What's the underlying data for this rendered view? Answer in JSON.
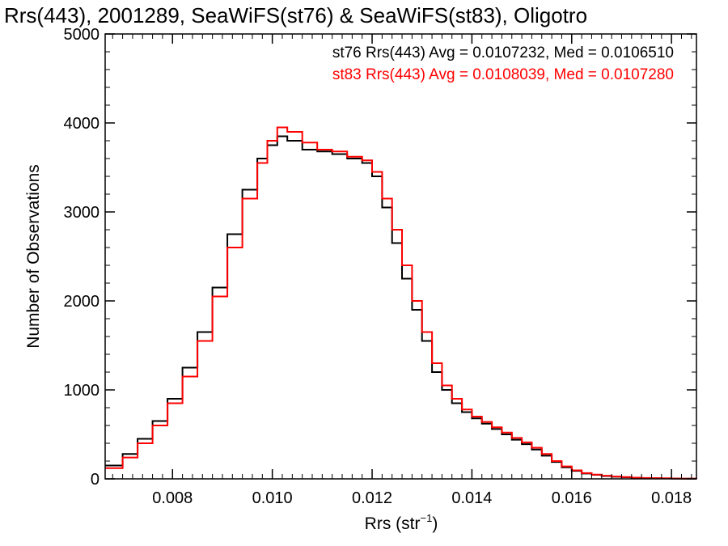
{
  "chart_data": {
    "type": "line",
    "title": "Rrs(443), 2001289, SeaWiFS(st76) & SeaWiFS(st83), Oligotro",
    "xlabel": "Rrs (str",
    "xlabel_exp": "−1",
    "xlabel_end": ")",
    "ylabel": "Number of Observations",
    "xlim": [
      0.00665,
      0.0185
    ],
    "ylim": [
      0,
      5000
    ],
    "x_ticks": [
      {
        "value": 0.008,
        "label": "0.008"
      },
      {
        "value": 0.01,
        "label": "0.010"
      },
      {
        "value": 0.012,
        "label": "0.012"
      },
      {
        "value": 0.014,
        "label": "0.014"
      },
      {
        "value": 0.016,
        "label": "0.016"
      },
      {
        "value": 0.018,
        "label": "0.018"
      }
    ],
    "y_ticks": [
      {
        "value": 0,
        "label": "0"
      },
      {
        "value": 1000,
        "label": "1000"
      },
      {
        "value": 2000,
        "label": "2000"
      },
      {
        "value": 3000,
        "label": "3000"
      },
      {
        "value": 4000,
        "label": "4000"
      },
      {
        "value": 5000,
        "label": "5000"
      }
    ],
    "grid": false,
    "legend_position": "top-right",
    "series": [
      {
        "label": "st76 Rrs(443) Avg = 0.0107232, Med = 0.0106510",
        "color": "#000000",
        "x": [
          0.00665,
          0.007,
          0.0073,
          0.0076,
          0.0079,
          0.0082,
          0.0085,
          0.0088,
          0.0091,
          0.0094,
          0.0097,
          0.0099,
          0.0101,
          0.0103,
          0.0106,
          0.0109,
          0.0112,
          0.0115,
          0.0118,
          0.012,
          0.0122,
          0.0124,
          0.0126,
          0.0128,
          0.013,
          0.0132,
          0.0134,
          0.0136,
          0.0138,
          0.014,
          0.0142,
          0.0144,
          0.0146,
          0.0148,
          0.015,
          0.0152,
          0.0154,
          0.0156,
          0.0158,
          0.016,
          0.0162,
          0.0164,
          0.0166,
          0.0168,
          0.017,
          0.0172,
          0.0174,
          0.0176,
          0.0178,
          0.018,
          0.0182,
          0.0185
        ],
        "y": [
          150,
          280,
          450,
          650,
          900,
          1250,
          1650,
          2150,
          2750,
          3250,
          3600,
          3750,
          3850,
          3800,
          3700,
          3680,
          3650,
          3600,
          3550,
          3400,
          3050,
          2650,
          2250,
          1900,
          1550,
          1200,
          1000,
          850,
          750,
          680,
          620,
          560,
          500,
          440,
          390,
          330,
          260,
          190,
          130,
          90,
          60,
          45,
          32,
          24,
          18,
          12,
          9,
          7,
          5,
          4,
          3,
          2
        ]
      },
      {
        "label": "st83 Rrs(443) Avg = 0.0108039, Med = 0.0107280",
        "color": "#ff0000",
        "x": [
          0.00665,
          0.007,
          0.0073,
          0.0076,
          0.0079,
          0.0082,
          0.0085,
          0.0088,
          0.0091,
          0.0094,
          0.0097,
          0.0099,
          0.0101,
          0.0103,
          0.0106,
          0.0109,
          0.0112,
          0.0115,
          0.0118,
          0.012,
          0.0122,
          0.0124,
          0.0126,
          0.0128,
          0.013,
          0.0132,
          0.0134,
          0.0136,
          0.0138,
          0.014,
          0.0142,
          0.0144,
          0.0146,
          0.0148,
          0.015,
          0.0152,
          0.0154,
          0.0156,
          0.0158,
          0.016,
          0.0162,
          0.0164,
          0.0166,
          0.0168,
          0.017,
          0.0172,
          0.0174,
          0.0176,
          0.0178,
          0.018,
          0.0182,
          0.0185
        ],
        "y": [
          120,
          240,
          400,
          600,
          850,
          1150,
          1550,
          2050,
          2600,
          3150,
          3550,
          3800,
          3950,
          3900,
          3780,
          3700,
          3680,
          3620,
          3580,
          3450,
          3150,
          2800,
          2400,
          2000,
          1650,
          1300,
          1050,
          900,
          780,
          700,
          640,
          580,
          520,
          460,
          410,
          350,
          280,
          200,
          140,
          95,
          65,
          48,
          35,
          26,
          20,
          14,
          10,
          8,
          6,
          4,
          3,
          2
        ]
      }
    ]
  }
}
